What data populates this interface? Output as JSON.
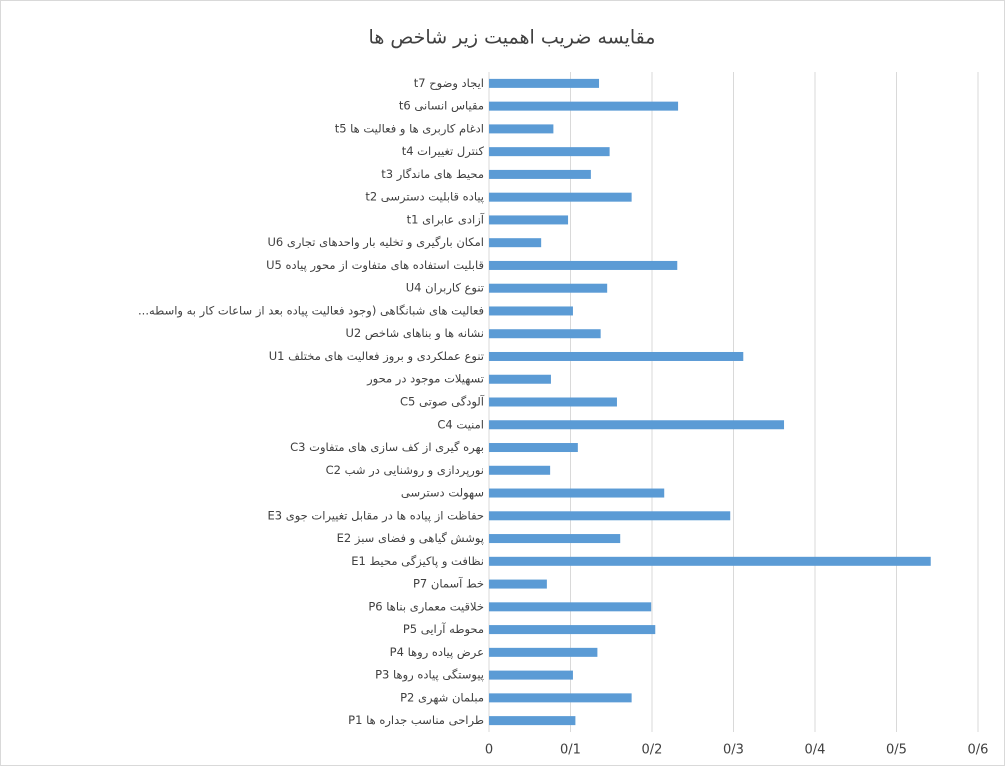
{
  "chart_data": {
    "type": "hbar",
    "title": "مقایسه ضریب اهمیت زیر شاخص ها",
    "categories": [
      "ایجاد وضوح t7",
      "مقیاس انسانی t6",
      "ادغام کاربری ها و فعالیت ها t5",
      "کنترل تغییرات t4",
      "محیط های ماندگار t3",
      "پیاده قابلیت دسترسی t2",
      "آزادی عابرای t1",
      "امکان بارگیری و تخلیه بار واحدهای تجاری U6",
      "قابلیت استفاده های متفاوت از محور پیاده U5",
      "تنوع کاربران U4",
      "فعالیت های شبانگاهی (وجود فعالیت پیاده بعد از ساعات کار به واسطه...",
      "نشانه ها و بناهای شاخص U2",
      "تنوع عملکردی و بروز فعالیت های مختلف U1",
      "تسهیلات موجود در محور",
      "آلودگی صوتی C5",
      "امنیت C4",
      "بهره گیری از کف سازی های متفاوت C3",
      "نورپردازی و روشنایی در شب C2",
      "سهولت دسترسی",
      "حفاظت از پیاده ها در مقابل تغییرات جوی E3",
      "پوشش گیاهی و فضای سبز E2",
      "نظافت و پاکیزگی محیط E1",
      "خط آسمان P7",
      "خلاقیت معماری بناها P6",
      "محوطه آرایی P5",
      "عرض پیاده روها P4",
      "پیوستگی پیاده روها P3",
      "مبلمان شهری P2",
      "طراحی مناسب جداره ها P1"
    ],
    "values": [
      0.135,
      0.232,
      0.079,
      0.148,
      0.125,
      0.175,
      0.097,
      0.064,
      0.231,
      0.145,
      0.103,
      0.137,
      0.312,
      0.076,
      0.157,
      0.362,
      0.109,
      0.075,
      0.215,
      0.296,
      0.161,
      0.542,
      0.071,
      0.199,
      0.204,
      0.133,
      0.103,
      0.175,
      0.106
    ],
    "color": "#5b9bd5",
    "xlim": [
      0,
      0.6
    ],
    "xticks": [
      0,
      {
        "value": 0.1,
        "label": "0/1"
      },
      {
        "value": 0.2,
        "label": "0/2"
      },
      {
        "value": 0.3,
        "label": "0/3"
      },
      {
        "value": 0.4,
        "label": "0/4"
      },
      {
        "value": 0.5,
        "label": "0/5"
      },
      {
        "value": 0.6,
        "label": "0/6"
      }
    ],
    "grid": true
  }
}
